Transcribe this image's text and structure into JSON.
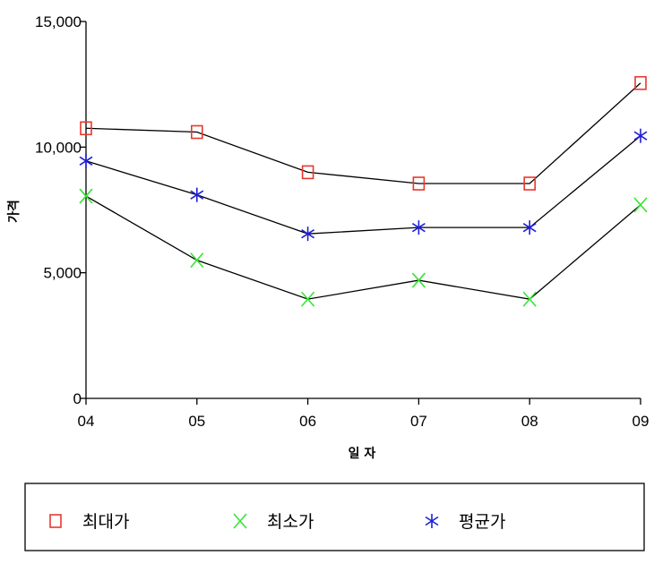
{
  "chart_data": {
    "type": "line",
    "categories": [
      "04",
      "05",
      "06",
      "07",
      "08",
      "09"
    ],
    "xlabel": "일 자",
    "ylabel": "가격",
    "ylim": [
      0,
      15000
    ],
    "yticks": [
      0,
      5000,
      10000,
      15000
    ],
    "ytick_labels": [
      "0",
      "5,000",
      "10,000",
      "15,000"
    ],
    "grid": false,
    "legend_position": "bottom",
    "series": [
      {
        "name": "최대가",
        "marker": "square",
        "color": "#e8382f",
        "values": [
          10750,
          10600,
          9000,
          8550,
          8550,
          12550
        ]
      },
      {
        "name": "최소가",
        "marker": "x",
        "color": "#33e633",
        "values": [
          8050,
          5500,
          3950,
          4700,
          3950,
          7700
        ]
      },
      {
        "name": "평균가",
        "marker": "asterisk",
        "color": "#1f1fd6",
        "values": [
          9450,
          8100,
          6550,
          6800,
          6800,
          10450
        ]
      }
    ]
  }
}
